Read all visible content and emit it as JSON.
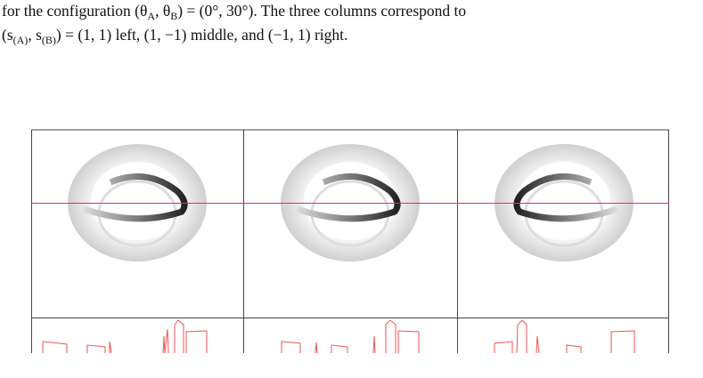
{
  "caption": {
    "lines": [
      [
        "for the configuration (θ",
        "A",
        ", θ",
        "B",
        ") = (0°, 30°).  The three columns correspond to"
      ],
      [
        "(s",
        "(A)",
        ", s",
        "(B)",
        ") = (1, 1) left, (1, −1) middle, and (−1, 1) right."
      ]
    ]
  }
}
